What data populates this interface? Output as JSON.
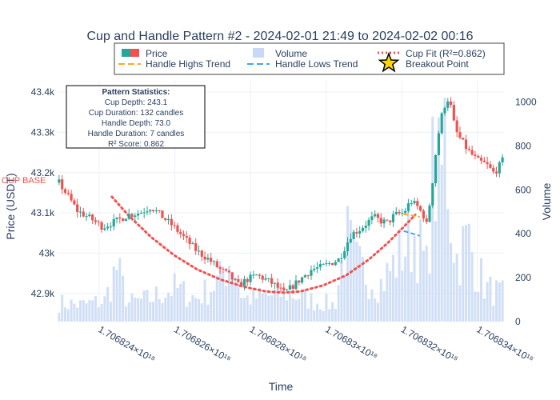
{
  "chart_data": {
    "type": "candlestick",
    "title": "Cup and Handle Pattern #2 - 2024-02-01 21:49 to 2024-02-02 00:16",
    "xlabel": "Time",
    "ylabel": "Price (USDT)",
    "y2label": "Volume",
    "x_ticks": [
      "1.706824×10¹⁸",
      "1.706826×10¹⁸",
      "1.706828×10¹⁸",
      "1.70683×10¹⁸",
      "1.706832×10¹⁸",
      "1.706834×10¹⁸"
    ],
    "x_tick_values": [
      1.706824,
      1.706826,
      1.706828,
      1.70683,
      1.706832,
      1.706834
    ],
    "xlim": [
      1.7068229,
      1.7068347
    ],
    "y_ticks": [
      42900,
      43000,
      43100,
      43200,
      43300,
      43400
    ],
    "y_tick_labels": [
      "42.9k",
      "43k",
      "43.1k",
      "43.2k",
      "43.3k",
      "43.4k"
    ],
    "ylim": [
      42830,
      43430
    ],
    "y2_ticks": [
      0,
      200,
      400,
      600,
      800,
      1000
    ],
    "y2_tick_labels": [
      "0",
      "200",
      "400",
      "600",
      "800",
      "1000"
    ],
    "y2lim": [
      0,
      1100
    ],
    "colors": {
      "up": "#26a69a",
      "down": "#ef5350",
      "volume": "#c9d9f5",
      "handle_highs": "#ffa726",
      "handle_lows": "#42a5f5",
      "cup_fit": "#ef5350",
      "breakout_star": "#ffd700"
    },
    "legend": {
      "placement": "top",
      "items": [
        {
          "label": "Price",
          "symbol": "candle"
        },
        {
          "label": "Volume",
          "symbol": "bar"
        },
        {
          "label": "Cup Fit (R²=0.862)",
          "symbol": "dotted"
        },
        {
          "label": "Handle Highs Trend",
          "symbol": "dash-orange"
        },
        {
          "label": "Handle Lows Trend",
          "symbol": "dash-blue"
        },
        {
          "label": "Breakout Point",
          "symbol": "star"
        }
      ]
    },
    "stats": {
      "title": "Pattern Statistics:",
      "lines": [
        "Cup Depth: 243.1",
        "Cup Duration: 132 candles",
        "Handle Depth: 73.0",
        "Handle Duration: 7 candles",
        "R² Score: 0.862"
      ]
    },
    "annotation": "CUP BASE",
    "grid": true,
    "candle_count": 147,
    "price_anchors": [
      [
        0,
        43175
      ],
      [
        4,
        43140
      ],
      [
        8,
        43105
      ],
      [
        14,
        43085
      ],
      [
        19,
        43065
      ],
      [
        25,
        43080
      ],
      [
        30,
        43095
      ],
      [
        35,
        43100
      ],
      [
        40,
        43115
      ],
      [
        45,
        43090
      ],
      [
        50,
        43065
      ],
      [
        55,
        43035
      ],
      [
        60,
        43005
      ],
      [
        65,
        42985
      ],
      [
        70,
        42960
      ],
      [
        74,
        42945
      ],
      [
        78,
        42920
      ],
      [
        82,
        42935
      ],
      [
        86,
        42945
      ],
      [
        90,
        42935
      ],
      [
        94,
        42920
      ],
      [
        98,
        42900
      ],
      [
        102,
        42920
      ],
      [
        106,
        42940
      ],
      [
        110,
        42960
      ],
      [
        114,
        42965
      ],
      [
        118,
        42975
      ],
      [
        122,
        42985
      ],
      [
        124,
        43010
      ],
      [
        127,
        43045
      ],
      [
        131,
        43060
      ],
      [
        134,
        43075
      ],
      [
        137,
        43090
      ],
      [
        140,
        43080
      ],
      [
        143,
        43075
      ],
      [
        146,
        43095
      ],
      [
        150,
        43100
      ],
      [
        153,
        43130
      ],
      [
        156,
        43115
      ],
      [
        159,
        43090
      ],
      [
        160,
        43070
      ],
      [
        162,
        43150
      ],
      [
        164,
        43250
      ],
      [
        166,
        43330
      ],
      [
        168,
        43370
      ],
      [
        170,
        43390
      ],
      [
        171,
        43340
      ],
      [
        173,
        43300
      ],
      [
        175,
        43280
      ],
      [
        178,
        43255
      ],
      [
        182,
        43230
      ],
      [
        186,
        43220
      ],
      [
        189,
        43200
      ],
      [
        191,
        43210
      ],
      [
        193,
        43230
      ]
    ],
    "volume_anchors": [
      [
        0,
        90
      ],
      [
        10,
        80
      ],
      [
        20,
        100
      ],
      [
        25,
        260
      ],
      [
        30,
        90
      ],
      [
        40,
        110
      ],
      [
        45,
        140
      ],
      [
        50,
        160
      ],
      [
        60,
        110
      ],
      [
        70,
        200
      ],
      [
        75,
        320
      ],
      [
        80,
        110
      ],
      [
        90,
        120
      ],
      [
        100,
        140
      ],
      [
        110,
        100
      ],
      [
        120,
        80
      ],
      [
        125,
        400
      ],
      [
        130,
        260
      ],
      [
        140,
        180
      ],
      [
        145,
        260
      ],
      [
        150,
        350
      ],
      [
        155,
        420
      ],
      [
        160,
        250
      ],
      [
        163,
        760
      ],
      [
        166,
        620
      ],
      [
        168,
        920
      ],
      [
        170,
        580
      ],
      [
        173,
        300
      ],
      [
        178,
        400
      ],
      [
        182,
        250
      ],
      [
        186,
        160
      ],
      [
        193,
        130
      ]
    ],
    "cup_fit_points": [
      [
        23,
        43140
      ],
      [
        30,
        43095
      ],
      [
        40,
        43040
      ],
      [
        50,
        42995
      ],
      [
        60,
        42960
      ],
      [
        70,
        42935
      ],
      [
        80,
        42917
      ],
      [
        90,
        42905
      ],
      [
        98,
        42902
      ],
      [
        105,
        42905
      ],
      [
        115,
        42920
      ],
      [
        125,
        42945
      ],
      [
        135,
        42985
      ],
      [
        143,
        43025
      ],
      [
        150,
        43065
      ],
      [
        155,
        43095
      ]
    ],
    "handle_highs": [
      [
        150,
        43097
      ],
      [
        157,
        43090
      ]
    ],
    "handle_lows": [
      [
        150,
        43055
      ],
      [
        157,
        43043
      ]
    ],
    "breakout": [
      162,
      43145
    ]
  }
}
